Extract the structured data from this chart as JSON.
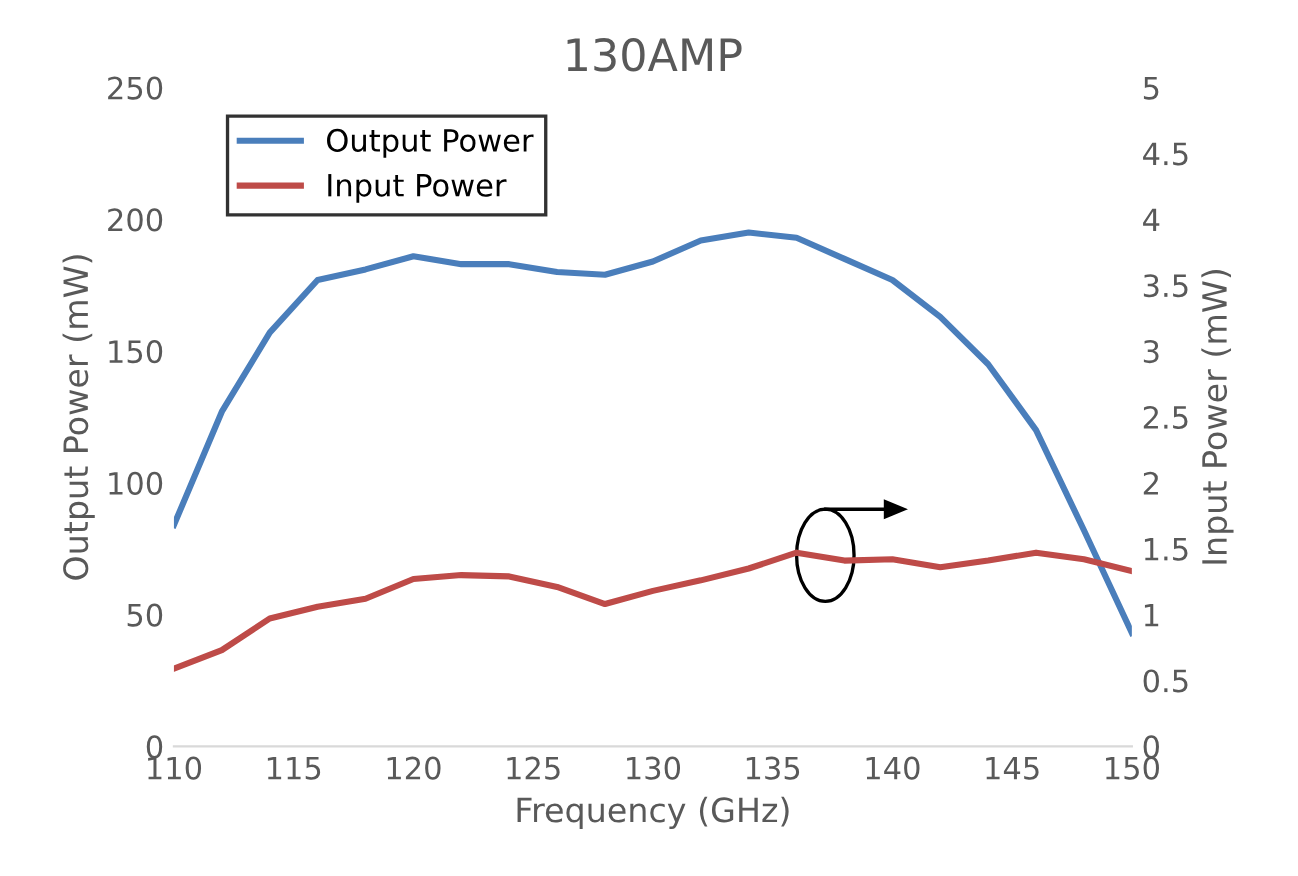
{
  "chart_data": {
    "type": "line",
    "title": "130AMP",
    "xlabel": "Frequency (GHz)",
    "ylabel": "Output Power (mW)",
    "y2label": "Input Power (mW)",
    "x": [
      110,
      112,
      114,
      116,
      118,
      120,
      122,
      124,
      126,
      128,
      130,
      132,
      134,
      136,
      138,
      140,
      142,
      144,
      146,
      148,
      150
    ],
    "series": [
      {
        "name": "Output Power",
        "color": "#4a7ebb",
        "values": [
          84,
          127,
          157,
          177,
          181,
          186,
          183,
          183,
          180,
          179,
          184,
          192,
          195,
          193,
          185,
          177,
          163,
          145,
          120,
          82,
          43
        ]
      },
      {
        "name": "Input Power",
        "color": "#be4b48",
        "axis": "y2",
        "values": [
          0.59,
          0.73,
          0.97,
          1.06,
          1.12,
          1.27,
          1.3,
          1.29,
          1.21,
          1.08,
          1.18,
          1.26,
          1.35,
          1.47,
          1.41,
          1.42,
          1.36,
          1.41,
          1.47,
          1.42,
          1.33
        ]
      }
    ],
    "xlim": [
      110,
      150
    ],
    "xticks": [
      110,
      115,
      120,
      125,
      130,
      135,
      140,
      145,
      150
    ],
    "ylim": [
      0,
      250
    ],
    "yticks": [
      0,
      50,
      100,
      150,
      200,
      250
    ],
    "y2lim": [
      0,
      5
    ],
    "y2ticks": [
      0,
      0.5,
      1,
      1.5,
      2,
      2.5,
      3,
      3.5,
      4,
      4.5,
      5
    ],
    "grid": false,
    "legend": "top left",
    "line_style": "solid",
    "marker": "none"
  }
}
